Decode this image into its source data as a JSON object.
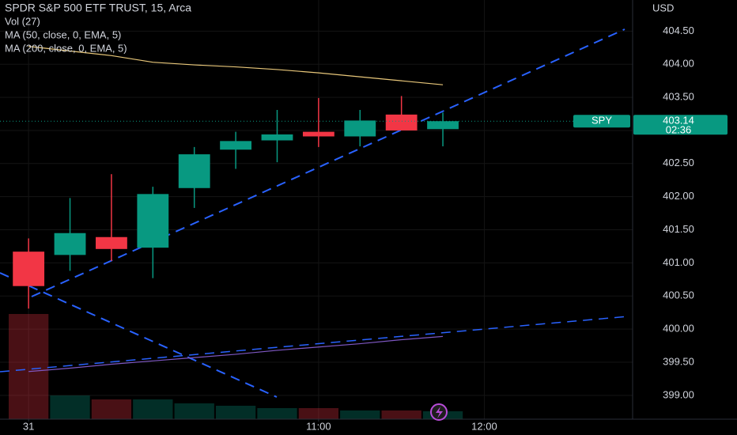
{
  "chart_data": {
    "type": "candlestick",
    "title": "SPDR S&P 500 ETF TRUST, 15, Arca",
    "indicators": [
      "Vol (27)",
      "MA (50, close, 0, EMA, 5)",
      "MA (200, close, 0, EMA, 5)"
    ],
    "currency": "USD",
    "symbol": "SPY",
    "last_price": 403.14,
    "countdown": "02:36",
    "categories": [
      "31",
      null,
      null,
      null,
      null,
      null,
      null,
      "11:00",
      null,
      null,
      null
    ],
    "open": [
      401.17,
      401.12,
      401.39,
      401.23,
      402.13,
      402.71,
      402.85,
      402.98,
      402.91,
      403.24,
      403.02
    ],
    "high": [
      401.37,
      401.98,
      402.34,
      402.15,
      402.75,
      402.98,
      403.31,
      403.49,
      403.31,
      403.52,
      403.27
    ],
    "low": [
      400.31,
      400.88,
      401.03,
      400.77,
      401.83,
      402.42,
      402.52,
      402.75,
      402.76,
      403.0,
      402.76
    ],
    "close": [
      400.65,
      401.45,
      401.21,
      402.04,
      402.64,
      402.84,
      402.94,
      402.91,
      403.15,
      403.0,
      403.14
    ],
    "volume": [
      2660000,
      600000,
      500000,
      500000,
      400000,
      340000,
      280000,
      280000,
      220000,
      220000,
      200000
    ],
    "series": [
      {
        "name": "MA (50, close, 0, EMA, 5)",
        "color": "#7e57c2",
        "values": [
          399.36,
          399.41,
          399.47,
          399.52,
          399.57,
          399.62,
          399.68,
          399.73,
          399.78,
          399.84,
          399.89
        ]
      },
      {
        "name": "MA (200, close, 0, EMA, 5)",
        "color": "#e8c77a",
        "values": [
          404.27,
          404.2,
          404.13,
          404.03,
          403.99,
          403.96,
          403.92,
          403.87,
          403.81,
          403.75,
          403.69
        ]
      }
    ],
    "up_color": "#089981",
    "down_color": "#f23645",
    "xlim": [
      -0.69,
      14.58
    ],
    "xticks": [
      {
        "value": 0,
        "label": "31"
      },
      {
        "value": 7,
        "label": "11:00"
      },
      {
        "value": 11,
        "label": "12:00"
      }
    ],
    "ylim": [
      398.64,
      404.97
    ],
    "yticks": [
      {
        "value": 399,
        "label": "399.00"
      },
      {
        "value": 399.5,
        "label": "399.50"
      },
      {
        "value": 400,
        "label": "400.00"
      },
      {
        "value": 400.5,
        "label": "400.50"
      },
      {
        "value": 401,
        "label": "401.00"
      },
      {
        "value": 401.5,
        "label": "401.50"
      },
      {
        "value": 402,
        "label": "402.00"
      },
      {
        "value": 402.5,
        "label": "402.50"
      },
      {
        "value": 403,
        "label": "403.00"
      },
      {
        "value": 403.5,
        "label": "403.50"
      },
      {
        "value": 404,
        "label": "404.00"
      },
      {
        "value": 404.5,
        "label": "404.50"
      }
    ],
    "grid": true
  }
}
